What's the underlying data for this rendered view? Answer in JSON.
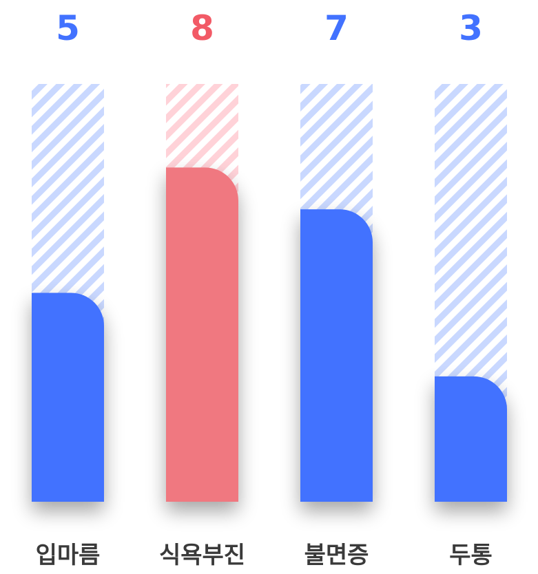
{
  "chart_data": {
    "type": "bar",
    "categories": [
      "입마름",
      "식욕부진",
      "불면증",
      "두통"
    ],
    "values": [
      5,
      8,
      7,
      3
    ],
    "ylim": [
      0,
      10
    ],
    "grid": false,
    "legend": "none",
    "highlight_index": 1,
    "colors": {
      "bar": "#4272ff",
      "highlight_bar": "#f07880",
      "value_text": "#4272ff",
      "highlight_value_text": "#f25a66",
      "hatch": "#c9d8ff",
      "highlight_hatch": "#ffd2d8",
      "category_text": "#3a3a3a"
    }
  }
}
